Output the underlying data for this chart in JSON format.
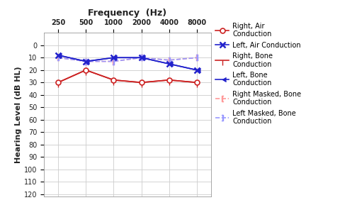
{
  "title": "Frequency  (Hz)",
  "ylabel": "Hearing Level (dB HL)",
  "frequencies": [
    250,
    500,
    1000,
    2000,
    4000,
    8000
  ],
  "ylim_min": -10,
  "ylim_max": 120,
  "yticks": [
    0,
    10,
    20,
    30,
    40,
    50,
    60,
    70,
    80,
    90,
    100,
    110,
    120
  ],
  "right_air": [
    30,
    20,
    28,
    30,
    28,
    30
  ],
  "left_air": [
    8,
    13,
    10,
    10,
    15,
    20
  ],
  "right_bone": [
    30,
    20,
    28,
    30,
    28,
    30
  ],
  "left_bone": [
    8,
    13,
    10,
    10,
    15,
    20
  ],
  "right_masked_bone": [
    10,
    13,
    13,
    10,
    12,
    10
  ],
  "left_masked_bone": [
    10,
    13,
    13,
    10,
    12,
    10
  ],
  "right_air_color": "#cc2222",
  "left_air_color": "#2222cc",
  "right_bone_color": "#cc2222",
  "left_bone_color": "#2222cc",
  "right_masked_bone_color": "#ff9999",
  "left_masked_bone_color": "#9999ff",
  "grid_color": "#cccccc",
  "title_fontsize": 9,
  "label_fontsize": 8,
  "tick_fontsize": 7,
  "legend_fontsize": 7
}
